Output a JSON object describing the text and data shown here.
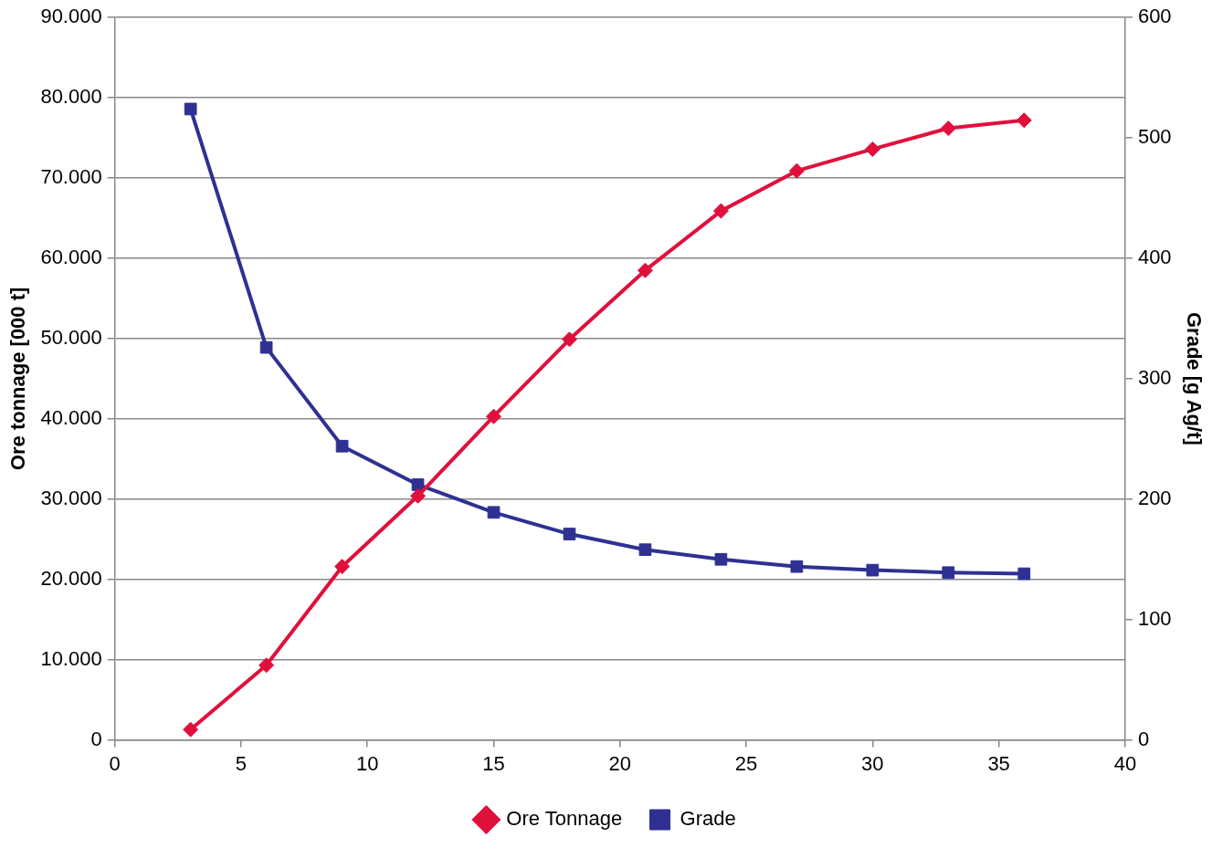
{
  "chart_data": {
    "type": "line",
    "xlabel": null,
    "ylabel": "Ore tonnage [000 t]",
    "y2label": "Grade [g Ag/t]",
    "x": [
      3,
      6,
      9,
      12,
      15,
      18,
      21,
      24,
      27,
      30,
      33,
      36
    ],
    "series": [
      {
        "name": "Ore Tonnage",
        "color": "#e0103c",
        "marker": "diamond",
        "values": [
          1300,
          9300,
          21600,
          30400,
          40300,
          49900,
          58500,
          65900,
          70900,
          73600,
          76200,
          77200
        ]
      },
      {
        "name": "Grade",
        "color": "#2e3192",
        "marker": "square",
        "axis": "y2",
        "values": [
          524,
          326,
          244,
          212,
          189,
          171,
          158,
          150,
          144,
          141,
          139,
          138
        ]
      }
    ],
    "xlim": [
      0,
      40
    ],
    "xticks": [
      0,
      5,
      10,
      15,
      20,
      25,
      30,
      35,
      40
    ],
    "ylim": [
      0,
      90000
    ],
    "yticks": [
      0,
      {
        "value": 10000,
        "label": "10.000"
      },
      {
        "value": 20000,
        "label": "20.000"
      },
      {
        "value": 30000,
        "label": "30.000"
      },
      {
        "value": 40000,
        "label": "40.000"
      },
      {
        "value": 50000,
        "label": "50.000"
      },
      {
        "value": 60000,
        "label": "60.000"
      },
      {
        "value": 70000,
        "label": "70.000"
      },
      {
        "value": 80000,
        "label": "80.000"
      },
      {
        "value": 90000,
        "label": "90.000"
      }
    ],
    "y2lim": [
      0,
      600
    ],
    "y2ticks": [
      0,
      100,
      200,
      300,
      400,
      500,
      600
    ],
    "grid": "y",
    "legend": "bottom",
    "line_style": "solid"
  }
}
